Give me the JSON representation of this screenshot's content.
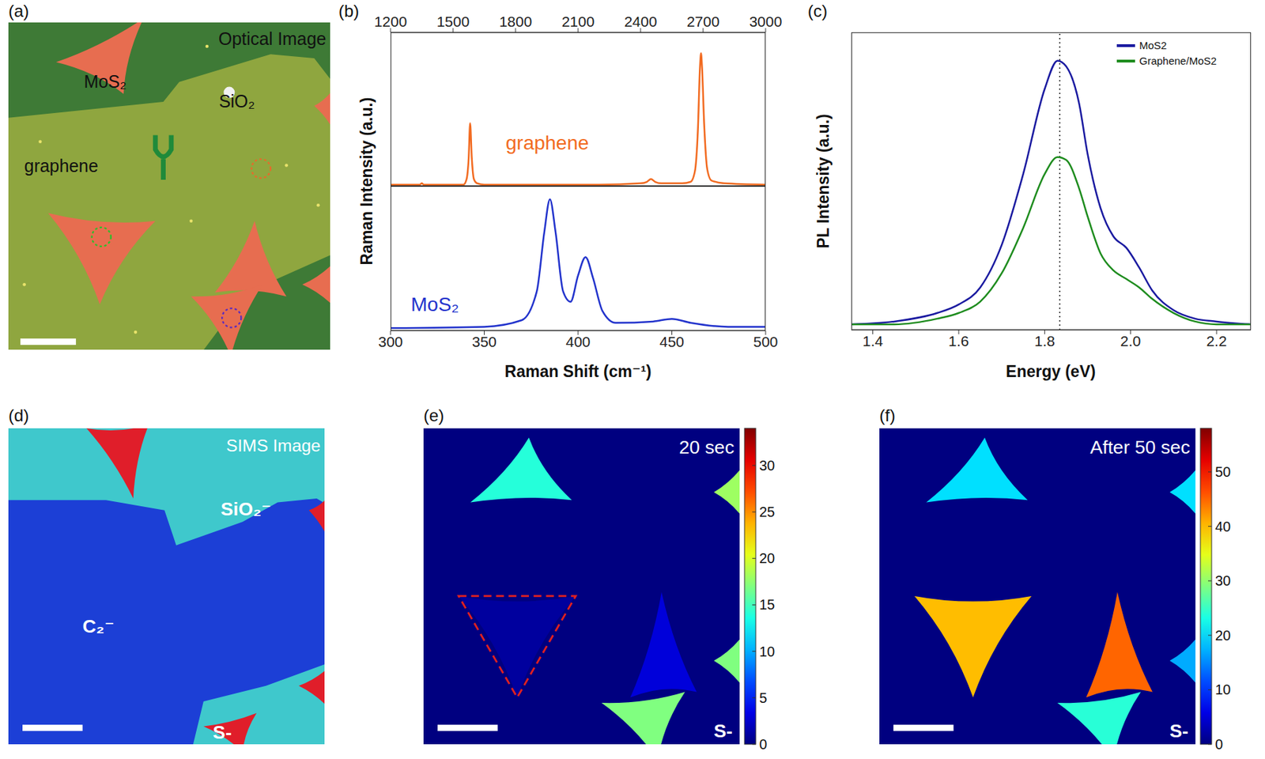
{
  "chart_data": [
    {
      "type": "line",
      "panel": "(b)",
      "ylabel": "Raman Intensity (a.u.)",
      "x": [
        1200,
        1300,
        1340,
        1350,
        1360,
        1400,
        1500,
        1550,
        1565,
        1575,
        1582,
        1590,
        1600,
        1615,
        1650,
        1800,
        2000,
        2200,
        2400,
        2430,
        2450,
        2470,
        2500,
        2600,
        2640,
        2660,
        2675,
        2685,
        2690,
        2695,
        2705,
        2720,
        2740,
        2800,
        3000
      ],
      "series": [
        {
          "name": "graphene",
          "color": "#f26b21",
          "values": [
            0.01,
            0.01,
            0.01,
            0.02,
            0.01,
            0.01,
            0.01,
            0.01,
            0.05,
            0.2,
            0.45,
            0.2,
            0.05,
            0.02,
            0.01,
            0.01,
            0.01,
            0.01,
            0.02,
            0.03,
            0.05,
            0.03,
            0.02,
            0.02,
            0.03,
            0.1,
            0.4,
            0.85,
            0.95,
            0.85,
            0.45,
            0.12,
            0.04,
            0.02,
            0.01
          ]
        }
      ],
      "xlim": [
        1200,
        3000
      ],
      "xticks": [
        1200,
        1500,
        1800,
        2100,
        2400,
        2700,
        3000
      ],
      "ylim": [
        0,
        1.1
      ],
      "tick_labels": "x"
    },
    {
      "type": "line",
      "xlabel": "Raman Shift (cm⁻¹)",
      "x": [
        300,
        350,
        370,
        378,
        382,
        385,
        388,
        392,
        396,
        400,
        404,
        408,
        413,
        420,
        440,
        450,
        460,
        480,
        500
      ],
      "series": [
        {
          "name": "MoS₂",
          "color": "#2233cc",
          "values": [
            0.02,
            0.03,
            0.08,
            0.3,
            0.75,
            1.0,
            0.75,
            0.3,
            0.22,
            0.42,
            0.56,
            0.4,
            0.15,
            0.06,
            0.07,
            0.09,
            0.06,
            0.03,
            0.03
          ]
        }
      ],
      "xlim": [
        300,
        500
      ],
      "xticks": [
        300,
        350,
        400,
        450,
        500
      ],
      "ylim": [
        0,
        1.1
      ],
      "tick_labels": "x"
    },
    {
      "type": "line",
      "panel": "(c)",
      "xlabel": "Energy (eV)",
      "ylabel": "PL Intensity (a.u.)",
      "x": [
        1.35,
        1.45,
        1.55,
        1.6,
        1.65,
        1.7,
        1.75,
        1.8,
        1.83,
        1.85,
        1.88,
        1.9,
        1.93,
        1.96,
        1.99,
        2.02,
        2.05,
        2.1,
        2.15,
        2.2,
        2.28
      ],
      "series": [
        {
          "name": "MoS2",
          "color": "#1a1aa0",
          "values": [
            0.02,
            0.03,
            0.06,
            0.09,
            0.15,
            0.3,
            0.55,
            0.85,
            0.95,
            0.93,
            0.8,
            0.62,
            0.43,
            0.33,
            0.29,
            0.22,
            0.14,
            0.07,
            0.04,
            0.03,
            0.02
          ]
        },
        {
          "name": "Graphene/MoS2",
          "color": "#1e8c1e",
          "values": [
            0.02,
            0.02,
            0.04,
            0.06,
            0.1,
            0.2,
            0.36,
            0.55,
            0.61,
            0.6,
            0.5,
            0.4,
            0.27,
            0.21,
            0.18,
            0.15,
            0.11,
            0.06,
            0.03,
            0.02,
            0.02
          ]
        }
      ],
      "xlim": [
        1.35,
        2.28
      ],
      "xticks": [
        1.4,
        1.6,
        1.8,
        {
          "value": 2,
          "label": "2.0"
        },
        2.2
      ],
      "ylim": [
        0,
        1.05
      ],
      "tick_labels": "x",
      "legend": "upper right",
      "vline": 1.835
    }
  ],
  "images": [
    {
      "type": "photo",
      "panel": "(a)",
      "title": "Optical Image",
      "labels": [
        "MoS₂",
        "SiO₂",
        "graphene"
      ]
    },
    {
      "type": "composite",
      "panel": "(d)",
      "title": "SIMS Image",
      "channels": [
        {
          "name": "C₂⁻",
          "color": "#1c3fd6"
        },
        {
          "name": "SiO₂⁻",
          "color": "#3fc8cc"
        },
        {
          "name": "S-",
          "color": "#e01e2a"
        }
      ]
    },
    {
      "type": "heatmap",
      "panel": "(e)",
      "title": "20 sec",
      "label": "S-",
      "values": [
        14,
        1,
        3,
        17,
        18,
        17
      ],
      "zlim": [
        0,
        34
      ],
      "zticks": [
        0,
        5,
        10,
        15,
        20,
        25,
        30
      ]
    },
    {
      "type": "heatmap",
      "panel": "(f)",
      "title": "After 50 sec",
      "label": "S-",
      "values": [
        20,
        40,
        45,
        24,
        20,
        17
      ],
      "zlim": [
        0,
        58
      ],
      "zticks": [
        0,
        10,
        20,
        30,
        40,
        50
      ]
    }
  ]
}
